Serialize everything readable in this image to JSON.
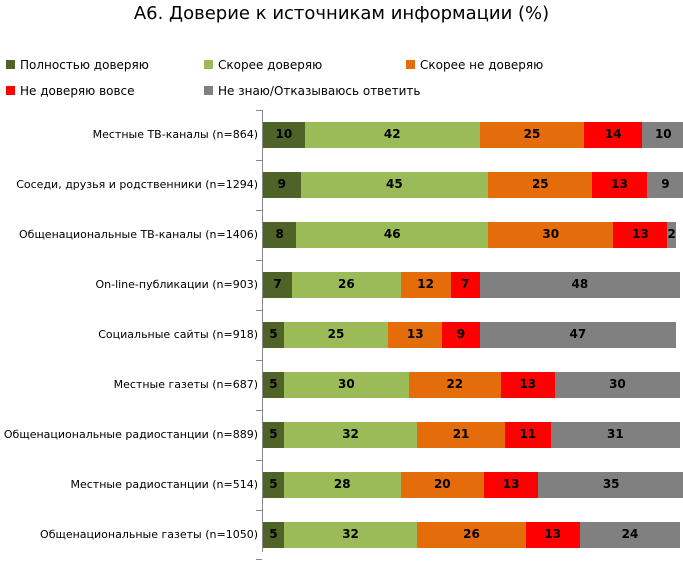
{
  "chart_data": {
    "type": "bar",
    "orientation": "horizontal",
    "stacked": true,
    "title": "А6. Доверие к источникам информации (%)",
    "legend_position": "top",
    "grid": false,
    "xlim": [
      0,
      100
    ],
    "categories": [
      "Местные ТВ-каналы (n=864)",
      "Соседи, друзья и родственники (n=1294)",
      "Общенациональные ТВ-каналы (n=1406)",
      "On-line-публикации (n=903)",
      "Социальные сайты (n=918)",
      "Местные газеты (n=687)",
      "Общенациональные радиостанции (n=889)",
      "Местные радиостанции (n=514)",
      "Общенациональные газеты (n=1050)"
    ],
    "series": [
      {
        "name": "Полностью доверяю",
        "color": "#4f6228",
        "values": [
          10,
          9,
          8,
          7,
          5,
          5,
          5,
          5,
          5
        ]
      },
      {
        "name": "Скорее доверяю",
        "color": "#9bbb59",
        "values": [
          42,
          45,
          46,
          26,
          25,
          30,
          32,
          28,
          32
        ]
      },
      {
        "name": "Скорее не доверяю",
        "color": "#e46c0a",
        "values": [
          25,
          25,
          30,
          12,
          13,
          22,
          21,
          20,
          26
        ]
      },
      {
        "name": "Не доверяю вовсе",
        "color": "#ff0000",
        "values": [
          14,
          13,
          13,
          7,
          9,
          13,
          11,
          13,
          13
        ]
      },
      {
        "name": "Не знаю/Отказываюсь ответить",
        "color": "#808080",
        "values": [
          10,
          9,
          2,
          48,
          47,
          30,
          31,
          35,
          24
        ]
      }
    ]
  }
}
